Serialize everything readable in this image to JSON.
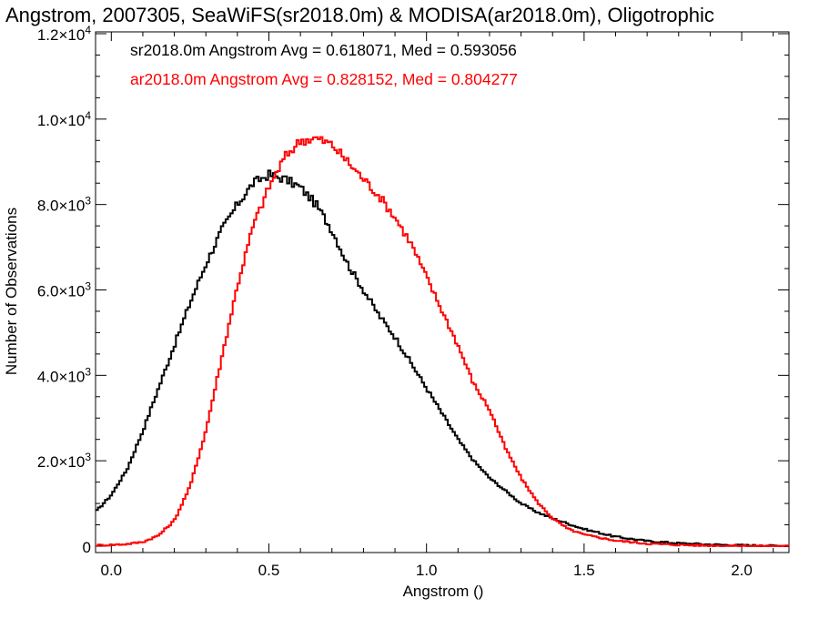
{
  "chart_data": {
    "type": "line",
    "title": "Angstrom, 2007305, SeaWiFS(sr2018.0m) & MODISA(ar2018.0m), Oligotrophic",
    "xlabel": "Angstrom ()",
    "ylabel": "Number of Observations",
    "xlim": [
      -0.05,
      2.15
    ],
    "ylim": [
      0,
      12000
    ],
    "xticks": [
      {
        "value": 0.0,
        "label": "0.0"
      },
      {
        "value": 0.5,
        "label": "0.5"
      },
      {
        "value": 1.0,
        "label": "1.0"
      },
      {
        "value": 1.5,
        "label": "1.5"
      },
      {
        "value": 2.0,
        "label": "2.0"
      }
    ],
    "yticks": [
      {
        "value": 0,
        "mant": "0",
        "exp": ""
      },
      {
        "value": 2000,
        "mant": "2.0×10",
        "exp": "3"
      },
      {
        "value": 4000,
        "mant": "4.0×10",
        "exp": "3"
      },
      {
        "value": 6000,
        "mant": "6.0×10",
        "exp": "3"
      },
      {
        "value": 8000,
        "mant": "8.0×10",
        "exp": "3"
      },
      {
        "value": 10000,
        "mant": "1.0×10",
        "exp": "4"
      },
      {
        "value": 12000,
        "mant": "1.2×10",
        "exp": "4"
      }
    ],
    "legend_placement": "top-left",
    "grid": false,
    "series": [
      {
        "name": "sr2018.0m",
        "color": "#000000",
        "legend_text": "sr2018.0m Angstrom Avg = 0.618071, Med = 0.593056",
        "x": [
          -0.05,
          0.0,
          0.05,
          0.1,
          0.15,
          0.2,
          0.25,
          0.3,
          0.35,
          0.4,
          0.45,
          0.5,
          0.55,
          0.6,
          0.65,
          0.7,
          0.75,
          0.8,
          0.85,
          0.9,
          0.95,
          1.0,
          1.05,
          1.1,
          1.15,
          1.2,
          1.25,
          1.3,
          1.35,
          1.4,
          1.5,
          1.6,
          1.7,
          1.8,
          1.9,
          2.0,
          2.1,
          2.15
        ],
        "y": [
          800,
          1200,
          1800,
          2700,
          3700,
          4700,
          5700,
          6600,
          7400,
          8000,
          8500,
          8700,
          8600,
          8400,
          8000,
          7400,
          6600,
          6000,
          5400,
          4900,
          4300,
          3700,
          3100,
          2500,
          2000,
          1600,
          1300,
          1000,
          800,
          650,
          400,
          220,
          120,
          70,
          40,
          20,
          10,
          5
        ]
      },
      {
        "name": "ar2018.0m",
        "color": "#ff0000",
        "legend_text": "ar2018.0m Angstrom Avg = 0.828152, Med = 0.804277",
        "x": [
          -0.05,
          0.0,
          0.05,
          0.1,
          0.15,
          0.2,
          0.25,
          0.3,
          0.35,
          0.4,
          0.45,
          0.5,
          0.55,
          0.6,
          0.65,
          0.7,
          0.75,
          0.8,
          0.85,
          0.9,
          0.95,
          1.0,
          1.05,
          1.1,
          1.15,
          1.2,
          1.25,
          1.3,
          1.35,
          1.4,
          1.45,
          1.5,
          1.6,
          1.7,
          1.8,
          1.9,
          2.0,
          2.1,
          2.15
        ],
        "y": [
          20,
          30,
          50,
          100,
          250,
          600,
          1400,
          2700,
          4400,
          6100,
          7500,
          8400,
          9100,
          9500,
          9550,
          9400,
          9000,
          8600,
          8200,
          7700,
          7100,
          6300,
          5500,
          4700,
          3800,
          3200,
          2300,
          1600,
          1050,
          650,
          400,
          270,
          130,
          60,
          30,
          15,
          8,
          4,
          2
        ]
      }
    ]
  }
}
